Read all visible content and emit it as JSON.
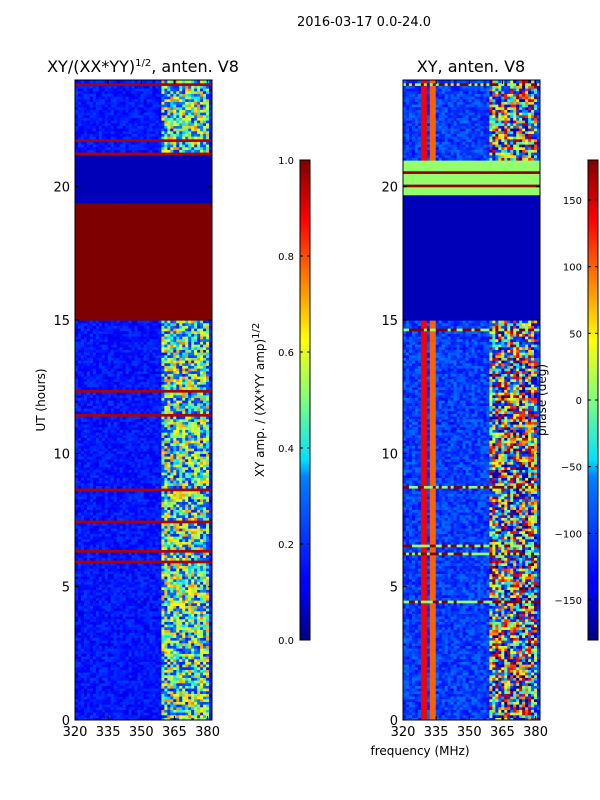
{
  "chart_data": [
    {
      "type": "heatmap",
      "suptitle": "2016-03-17 0.0-24.0",
      "title": "XY/(XX*YY)",
      "title_superscript": "1/2",
      "title_suffix": ", anten. V8",
      "ylabel": "UT (hours)",
      "xlabel": "",
      "xlim": [
        320,
        382
      ],
      "ylim": [
        0,
        24
      ],
      "xticks": [
        320,
        335,
        350,
        365,
        380
      ],
      "yticks": [
        0,
        5,
        10,
        15,
        20
      ],
      "colorbar": {
        "label": "XY amp. / (XX*YY amp)",
        "label_superscript": "1/2",
        "range": [
          0.0,
          1.0
        ],
        "ticks": [
          "0.0",
          "0.2",
          "0.4",
          "0.6",
          "0.8",
          "1.0"
        ]
      },
      "features": {
        "saturated_band_hours": [
          15.0,
          19.4
        ],
        "low_band_hours": [
          19.4,
          21.3
        ],
        "active_freq_band_mhz": [
          358,
          380
        ]
      }
    },
    {
      "type": "heatmap",
      "title": "XY, anten. V8",
      "xlabel": "frequency (MHz)",
      "ylabel": "",
      "xlim": [
        320,
        382
      ],
      "ylim": [
        0,
        24
      ],
      "xticks": [
        320,
        335,
        350,
        365,
        380
      ],
      "yticks": [
        0,
        5,
        10,
        15,
        20
      ],
      "colorbar": {
        "label": "phase (deg)",
        "range": [
          -180,
          180
        ],
        "ticks": [
          "150",
          "100",
          "50",
          "0",
          "−50",
          "−100",
          "−150"
        ]
      },
      "features": {
        "zero_phase_band_hours": [
          19.7,
          21.0
        ],
        "low_band_hours": [
          15.0,
          19.7
        ],
        "active_freq_band_mhz": [
          358,
          380
        ]
      }
    }
  ]
}
